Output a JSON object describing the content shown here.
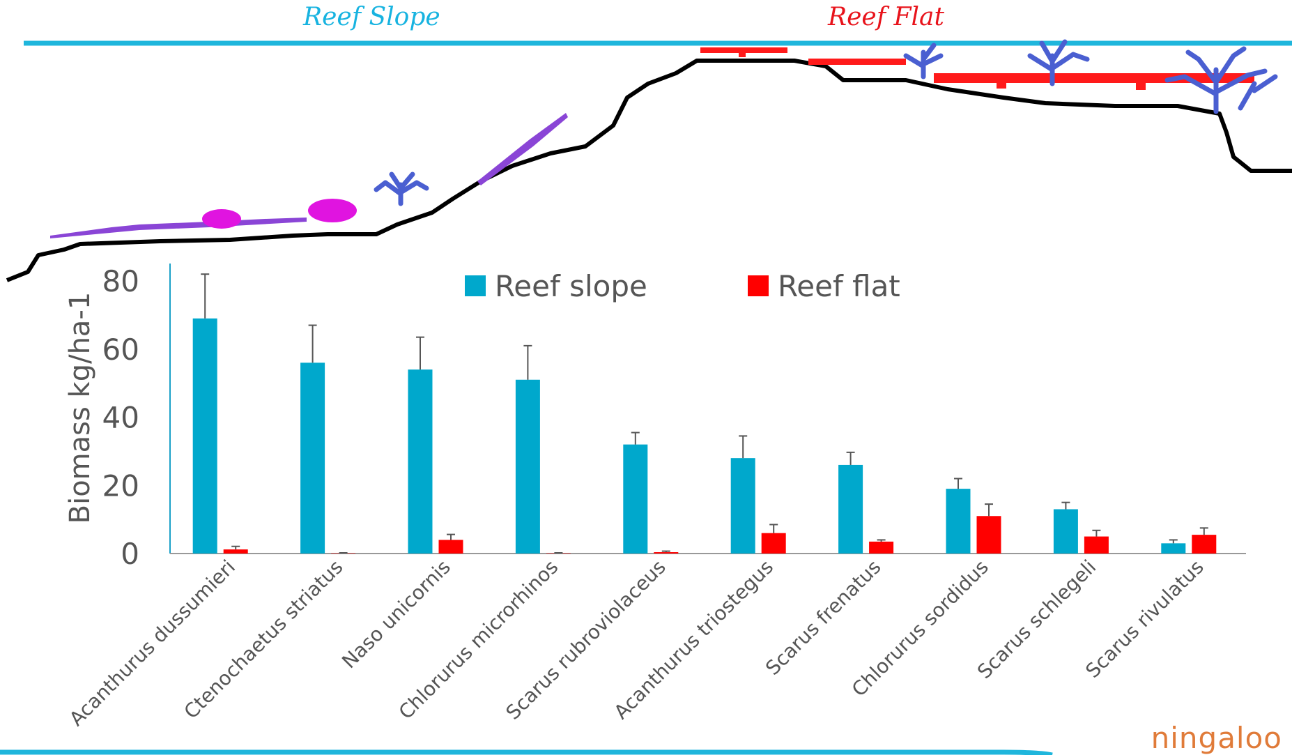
{
  "header": {
    "slope_label": "Reef Slope",
    "flat_label": "Reef Flat"
  },
  "logo": {
    "text": "ningaloo"
  },
  "colors": {
    "reef_slope": "#00a8cc",
    "reef_flat": "#ff0000",
    "slope_label": "#17b3e0",
    "flat_label": "#e8131b",
    "coral_blue": "#4a5fd1",
    "sponge_magenta": "#e014e0",
    "algae_purple": "#8a45d6",
    "reef_profile": "#000000",
    "banner_line": "#1fb6dc"
  },
  "icons": [
    "reef-profile-line",
    "branching-coral-icon",
    "table-coral-icon",
    "sponge-icon",
    "seagrass-icon"
  ],
  "chart_data": {
    "type": "bar",
    "categories": [
      "Acanthurus dussumieri",
      "Ctenochaetus striatus",
      "Naso unicornis",
      "Chlorurus microrhinos",
      "Scarus rubroviolaceus",
      "Acanthurus triostegus",
      "Scarus frenatus",
      "Chlorurus sordidus",
      "Scarus schlegeli",
      "Scarus rivulatus"
    ],
    "series": [
      {
        "name": "Reef slope",
        "color": "#00a8cc",
        "values": [
          69,
          56,
          54,
          51,
          32,
          28,
          26,
          19,
          13,
          3
        ],
        "errors": [
          13,
          11,
          9.5,
          10,
          3.5,
          6.5,
          3.7,
          3,
          2,
          1
        ]
      },
      {
        "name": "Reef flat",
        "color": "#ff0000",
        "values": [
          1.2,
          0.1,
          4,
          0.1,
          0.4,
          6,
          3.5,
          11,
          5,
          5.5
        ],
        "errors": [
          0.9,
          0.1,
          1.6,
          0.1,
          0.3,
          2.5,
          0.5,
          3.5,
          1.8,
          2
        ]
      }
    ],
    "ylabel": "Biomass kg/ha-1",
    "ylim": [
      0,
      80
    ],
    "yticks": [
      0,
      20,
      40,
      60,
      80
    ],
    "legend_position": "top",
    "grid": false
  }
}
